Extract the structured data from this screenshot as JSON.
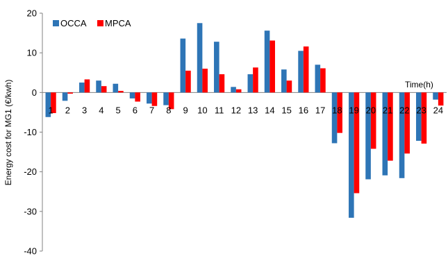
{
  "chart_data": {
    "type": "bar",
    "title": "",
    "xlabel": "Time(h)",
    "ylabel": "Energy cost for MG1 (€/kwh)",
    "ylim": [
      -40,
      20
    ],
    "yticks": [
      20,
      10,
      0,
      -10,
      -20,
      -30,
      -40
    ],
    "grid": false,
    "legend_position": "top-left",
    "categories": [
      "1",
      "2",
      "3",
      "4",
      "5",
      "6",
      "7",
      "8",
      "9",
      "10",
      "11",
      "12",
      "13",
      "14",
      "15",
      "16",
      "17",
      "18",
      "19",
      "20",
      "21",
      "22",
      "23",
      "24"
    ],
    "series": [
      {
        "name": "OCCA",
        "color": "#2E75B6",
        "values": [
          -6.2,
          -2.1,
          2.5,
          3.0,
          2.2,
          -1.5,
          -2.8,
          -3.2,
          13.6,
          17.5,
          12.8,
          1.4,
          4.6,
          15.6,
          5.8,
          10.5,
          7.0,
          -12.8,
          -31.6,
          -21.9,
          -20.9,
          -21.6,
          -12.2,
          -1.8
        ]
      },
      {
        "name": "MPCA",
        "color": "#FF0000",
        "values": [
          -5.2,
          -0.3,
          3.3,
          1.6,
          0.4,
          -2.3,
          -3.4,
          -4.2,
          5.5,
          6.0,
          4.6,
          0.8,
          6.3,
          13.1,
          3.0,
          11.6,
          6.1,
          -10.2,
          -25.4,
          -14.2,
          -17.2,
          -15.4,
          -12.9,
          -3.3
        ]
      }
    ]
  }
}
